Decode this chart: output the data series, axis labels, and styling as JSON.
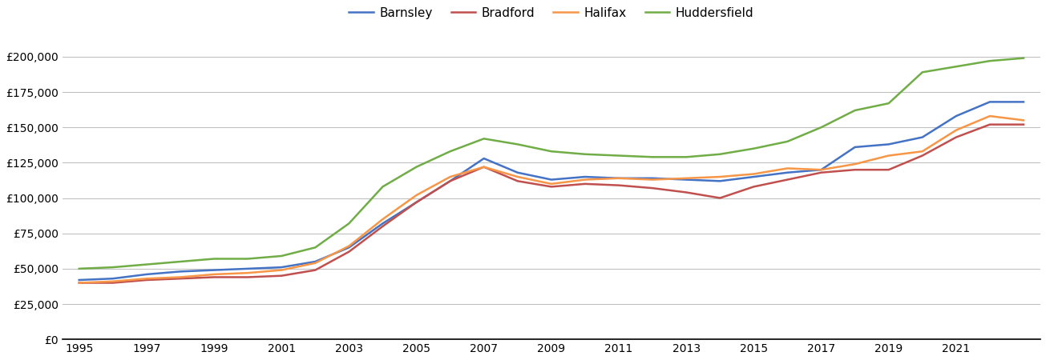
{
  "years": [
    1995,
    1996,
    1997,
    1998,
    1999,
    2000,
    2001,
    2002,
    2003,
    2004,
    2005,
    2006,
    2007,
    2008,
    2009,
    2010,
    2011,
    2012,
    2013,
    2014,
    2015,
    2016,
    2017,
    2018,
    2019,
    2020,
    2021,
    2022,
    2023
  ],
  "Barnsley": [
    42000,
    43000,
    46000,
    48000,
    49000,
    50000,
    51000,
    55000,
    65000,
    82000,
    97000,
    112000,
    128000,
    118000,
    113000,
    115000,
    114000,
    114000,
    113000,
    112000,
    115000,
    118000,
    120000,
    136000,
    138000,
    143000,
    158000,
    168000,
    168000
  ],
  "Bradford": [
    40000,
    40000,
    42000,
    43000,
    44000,
    44000,
    45000,
    49000,
    62000,
    80000,
    97000,
    112000,
    122000,
    112000,
    108000,
    110000,
    109000,
    107000,
    104000,
    100000,
    108000,
    113000,
    118000,
    120000,
    120000,
    130000,
    143000,
    152000,
    152000
  ],
  "Halifax": [
    40000,
    41000,
    43000,
    44000,
    46000,
    47000,
    49000,
    54000,
    66000,
    85000,
    102000,
    115000,
    122000,
    115000,
    110000,
    113000,
    114000,
    113000,
    114000,
    115000,
    117000,
    121000,
    120000,
    124000,
    130000,
    133000,
    148000,
    158000,
    155000
  ],
  "Huddersfield": [
    50000,
    51000,
    53000,
    55000,
    57000,
    57000,
    59000,
    65000,
    82000,
    108000,
    122000,
    133000,
    142000,
    138000,
    133000,
    131000,
    130000,
    129000,
    129000,
    131000,
    135000,
    140000,
    150000,
    162000,
    167000,
    189000,
    193000,
    197000,
    199000
  ],
  "colors": {
    "Barnsley": "#4472c4",
    "Bradford": "#c0504d",
    "Halifax": "#f79646",
    "Huddersfield": "#70ad47"
  },
  "ytick_labels": [
    "£0",
    "£25,000",
    "£50,000",
    "£75,000",
    "£100,000",
    "£125,000",
    "£150,000",
    "£175,000",
    "£200,000"
  ],
  "ytick_values": [
    0,
    25000,
    50000,
    75000,
    100000,
    125000,
    150000,
    175000,
    200000
  ],
  "ylim": [
    0,
    215000
  ],
  "xtick_years": [
    1995,
    1997,
    1999,
    2001,
    2003,
    2005,
    2007,
    2009,
    2011,
    2013,
    2015,
    2017,
    2019,
    2021
  ],
  "background_color": "#ffffff",
  "grid_color": "#c0c0c0",
  "legend_labels": [
    "Barnsley",
    "Bradford",
    "Halifax",
    "Huddersfield"
  ]
}
